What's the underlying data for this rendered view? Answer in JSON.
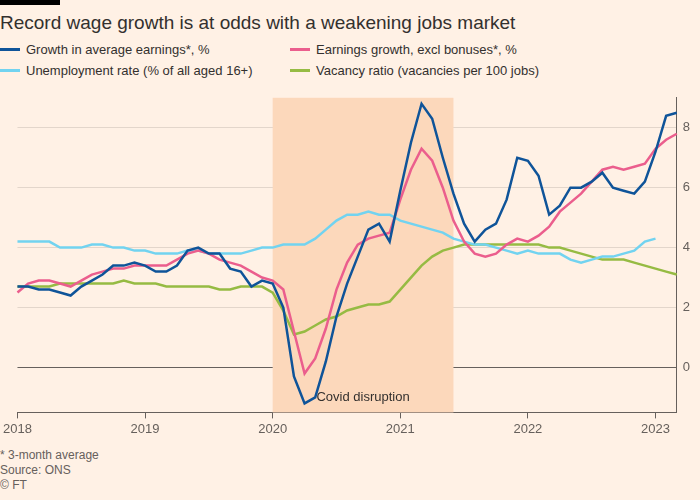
{
  "chart_data": {
    "type": "line",
    "title": "Record wage growth is at odds with a weakening jobs market",
    "categories": [
      "2018",
      null,
      null,
      null,
      null,
      null,
      null,
      null,
      null,
      null,
      null,
      null,
      "2019",
      null,
      null,
      null,
      null,
      null,
      null,
      null,
      null,
      null,
      null,
      null,
      "2020",
      null,
      null,
      null,
      null,
      null,
      null,
      null,
      null,
      null,
      null,
      null,
      "2021",
      null,
      null,
      null,
      null,
      null,
      null,
      null,
      null,
      null,
      null,
      null,
      "2022",
      null,
      null,
      null,
      null,
      null,
      null,
      null,
      null,
      null,
      null,
      null,
      "2023",
      null,
      null
    ],
    "series": [
      {
        "name": "Growth in average earnings*, %",
        "color": "#0f5499",
        "values": [
          2.7,
          2.7,
          2.6,
          2.6,
          2.5,
          2.4,
          2.7,
          2.9,
          3.1,
          3.4,
          3.4,
          3.5,
          3.4,
          3.2,
          3.2,
          3.4,
          3.9,
          4.0,
          3.8,
          3.8,
          3.3,
          3.2,
          2.7,
          2.9,
          2.8,
          2.0,
          -0.3,
          -1.2,
          -1.0,
          0.2,
          1.7,
          2.8,
          3.7,
          4.6,
          4.8,
          4.2,
          5.9,
          7.5,
          8.8,
          8.3,
          7.0,
          5.8,
          4.8,
          4.2,
          4.6,
          4.8,
          5.6,
          7.0,
          6.9,
          6.4,
          5.1,
          5.4,
          6.0,
          6.0,
          6.2,
          6.5,
          6.0,
          5.9,
          5.8,
          6.2,
          7.2,
          8.4,
          8.5
        ]
      },
      {
        "name": "Earnings growth, excl bonuses*, %",
        "color": "#eb5e8d",
        "values": [
          2.5,
          2.8,
          2.9,
          2.9,
          2.8,
          2.7,
          2.9,
          3.1,
          3.2,
          3.3,
          3.3,
          3.4,
          3.4,
          3.4,
          3.4,
          3.6,
          3.8,
          3.9,
          3.8,
          3.6,
          3.5,
          3.4,
          3.2,
          3.0,
          2.9,
          2.6,
          1.2,
          -0.2,
          0.3,
          1.3,
          2.6,
          3.5,
          4.1,
          4.3,
          4.4,
          4.5,
          5.6,
          6.6,
          7.3,
          6.9,
          6.0,
          4.9,
          4.2,
          3.8,
          3.7,
          3.8,
          4.1,
          4.3,
          4.2,
          4.4,
          4.7,
          5.2,
          5.5,
          5.8,
          6.2,
          6.6,
          6.7,
          6.6,
          6.7,
          6.8,
          7.3,
          7.6,
          7.8
        ]
      },
      {
        "name": "Unemployment rate (% of all aged 16+)",
        "color": "#72d3f0",
        "values": [
          4.2,
          4.2,
          4.2,
          4.2,
          4.0,
          4.0,
          4.0,
          4.1,
          4.1,
          4.0,
          4.0,
          3.9,
          3.9,
          3.8,
          3.8,
          3.8,
          3.9,
          3.9,
          3.8,
          3.8,
          3.8,
          3.8,
          3.9,
          4.0,
          4.0,
          4.1,
          4.1,
          4.1,
          4.3,
          4.6,
          4.9,
          5.1,
          5.1,
          5.2,
          5.1,
          5.1,
          4.9,
          4.8,
          4.7,
          4.6,
          4.5,
          4.3,
          4.2,
          4.1,
          4.1,
          4.0,
          3.9,
          3.8,
          3.9,
          3.8,
          3.8,
          3.8,
          3.6,
          3.5,
          3.6,
          3.7,
          3.7,
          3.8,
          3.9,
          4.2,
          4.3,
          null,
          null
        ]
      },
      {
        "name": "Vacancy ratio (vacancies per 100 jobs)",
        "color": "#96bb43",
        "values": [
          2.7,
          2.7,
          2.7,
          2.7,
          2.8,
          2.8,
          2.8,
          2.8,
          2.8,
          2.8,
          2.9,
          2.8,
          2.8,
          2.8,
          2.7,
          2.7,
          2.7,
          2.7,
          2.7,
          2.6,
          2.6,
          2.7,
          2.7,
          2.7,
          2.5,
          1.9,
          1.1,
          1.2,
          1.4,
          1.6,
          1.7,
          1.9,
          2.0,
          2.1,
          2.1,
          2.2,
          2.6,
          3.0,
          3.4,
          3.7,
          3.9,
          4.0,
          4.1,
          4.1,
          4.1,
          4.1,
          4.1,
          4.1,
          4.1,
          4.1,
          4.0,
          4.0,
          3.9,
          3.8,
          3.7,
          3.6,
          3.6,
          3.6,
          3.5,
          3.4,
          3.3,
          3.2,
          3.1
        ]
      }
    ],
    "ylim": [
      -1.5,
      9
    ],
    "yticks": [
      0,
      2,
      4,
      6,
      8
    ],
    "grid": true,
    "legend": "top",
    "annotations": [
      {
        "text": "Covid disruption",
        "from": 24,
        "to": 41
      }
    ],
    "footnote": "* 3-month average",
    "source": "Source: ONS",
    "credit": "© FT"
  }
}
